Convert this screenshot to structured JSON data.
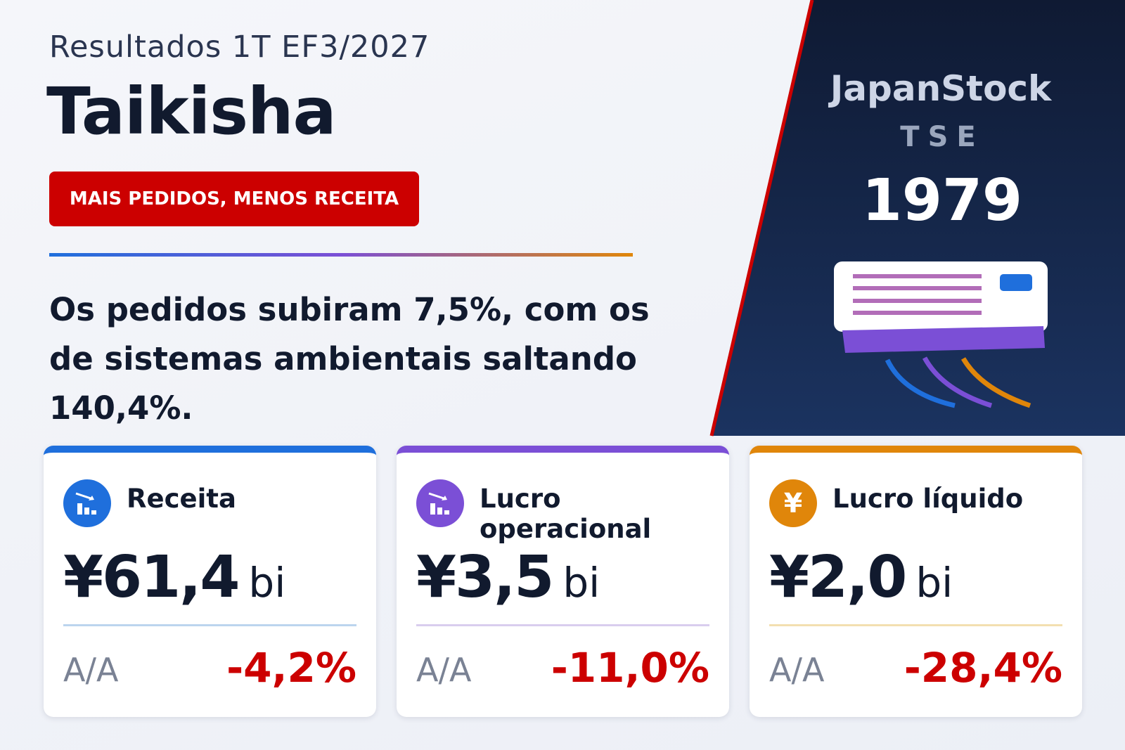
{
  "header": {
    "subtitle": "Resultados 1T EF3/2027",
    "company": "Taikisha",
    "badge": "MAIS PEDIDOS, MENOS RECEITA"
  },
  "summary": "Os pedidos subiram 7,5%, com os de sistemas ambientais saltando 140,4%.",
  "side": {
    "brand": "JapanStock",
    "exchange": "TSE",
    "code": "1979"
  },
  "cards": [
    {
      "label": "Receita",
      "value": "¥61,4",
      "unit": "bi",
      "change_label": "A/A",
      "change": "-4,2%"
    },
    {
      "label": "Lucro operacional",
      "value": "¥3,5",
      "unit": "bi",
      "change_label": "A/A",
      "change": "-11,0%"
    },
    {
      "label": "Lucro líquido",
      "icon_text": "¥",
      "value": "¥2,0",
      "unit": "bi",
      "change_label": "A/A",
      "change": "-28,4%"
    }
  ]
}
